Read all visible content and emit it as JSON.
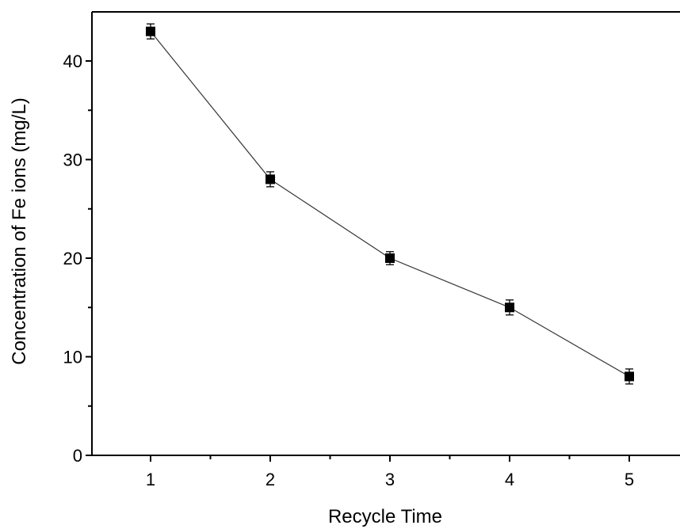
{
  "chart_data": {
    "type": "scatter",
    "x": [
      1,
      2,
      3,
      4,
      5
    ],
    "y": [
      43,
      28,
      20,
      15,
      8
    ],
    "y_err": [
      0.6,
      0.6,
      0.5,
      0.6,
      0.6
    ],
    "xlabel": "Recycle Time",
    "ylabel": "Concentration of Fe ions (mg/L)",
    "xlim": [
      0.5,
      5.45
    ],
    "ylim": [
      0,
      45
    ],
    "x_ticks": [
      1,
      2,
      3,
      4,
      5
    ],
    "x_minor_ticks": [
      1.5,
      2.5,
      3.5,
      4.5
    ],
    "y_ticks": [
      0,
      10,
      20,
      30,
      40
    ],
    "y_minor_ticks": [
      5,
      15,
      25,
      35
    ],
    "connected_line": true,
    "marker": "square",
    "grid": false,
    "legend": "none",
    "colors": {
      "marker": "#000000",
      "line": "#333333"
    }
  }
}
